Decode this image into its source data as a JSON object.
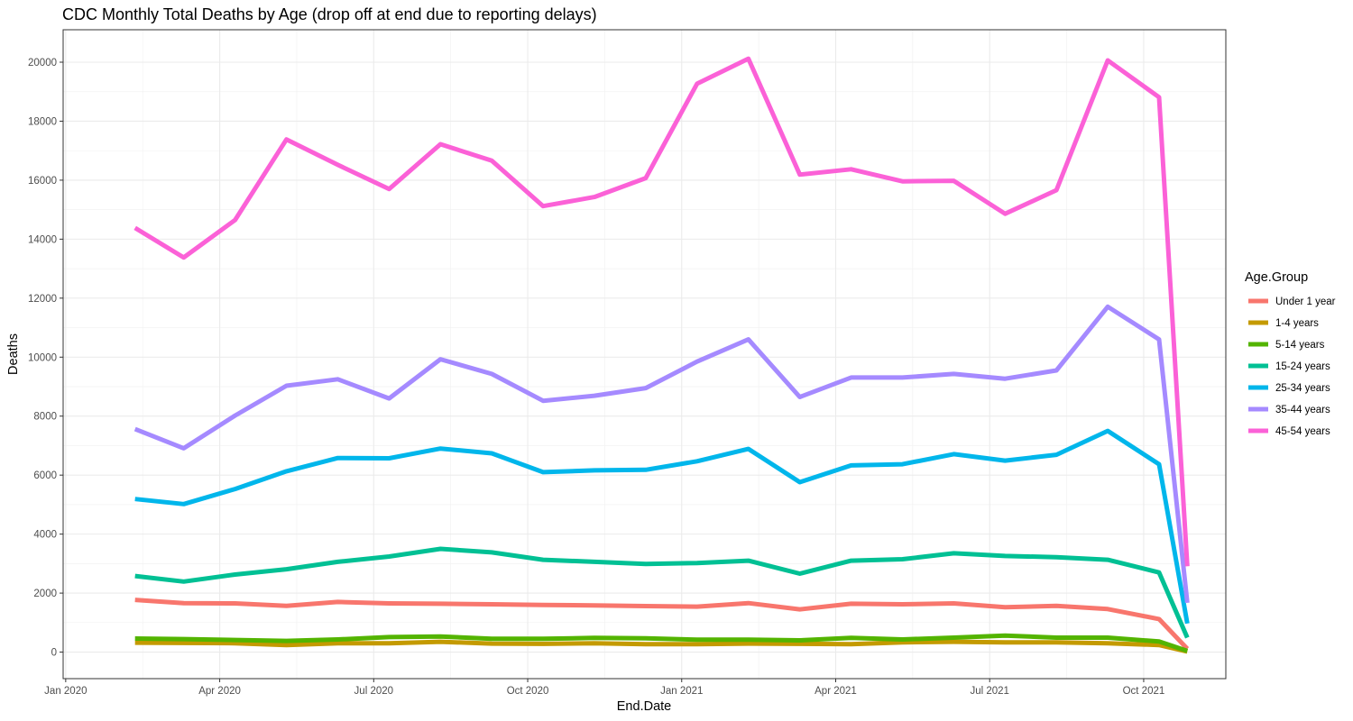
{
  "chart_data": {
    "type": "line",
    "title": "CDC Monthly Total Deaths by Age (drop off at end due to reporting delays)",
    "xlabel": "End.Date",
    "ylabel": "Deaths",
    "legend_title": "Age.Group",
    "legend_position": "right",
    "grid": true,
    "ylim": [
      -900,
      21100
    ],
    "y_ticks": [
      0,
      2000,
      4000,
      6000,
      8000,
      10000,
      12000,
      14000,
      16000,
      18000,
      20000
    ],
    "y_tick_labels": [
      "0",
      "2000",
      "4000",
      "6000",
      "8000",
      "10000",
      "12000",
      "14000",
      "16000",
      "18000",
      "20000"
    ],
    "x_ticks": [
      0,
      3,
      6,
      9,
      12,
      15,
      18,
      21
    ],
    "x_tick_labels": [
      "Jan 2020",
      "Apr 2020",
      "Jul 2020",
      "Oct 2020",
      "Jan 2021",
      "Apr 2021",
      "Jul 2021",
      "Oct 2021"
    ],
    "x_minor": [
      1.5,
      4.5,
      7.5,
      10.5,
      13.5,
      16.5,
      19.5
    ],
    "xlim": [
      -0.05,
      22.6
    ],
    "x": [
      1.35,
      2.3,
      3.3,
      4.3,
      5.3,
      6.3,
      7.3,
      8.3,
      9.3,
      10.3,
      11.3,
      12.3,
      13.3,
      14.3,
      15.3,
      16.3,
      17.3,
      18.3,
      19.3,
      20.3,
      21.3,
      21.85
    ],
    "series": [
      {
        "name": "Under 1 year",
        "color": "#F8766D",
        "values": [
          1770,
          1660,
          1650,
          1570,
          1700,
          1650,
          1640,
          1620,
          1600,
          1580,
          1560,
          1540,
          1660,
          1450,
          1640,
          1620,
          1650,
          1520,
          1570,
          1460,
          1120,
          110
        ]
      },
      {
        "name": "1-4 years",
        "color": "#C49A00",
        "values": [
          320,
          310,
          300,
          240,
          300,
          300,
          350,
          290,
          280,
          300,
          270,
          270,
          290,
          280,
          270,
          330,
          350,
          330,
          330,
          300,
          240,
          20
        ]
      },
      {
        "name": "5-14 years",
        "color": "#53B400",
        "values": [
          460,
          440,
          410,
          380,
          430,
          510,
          530,
          450,
          450,
          480,
          470,
          420,
          420,
          400,
          480,
          430,
          490,
          560,
          490,
          490,
          360,
          40
        ]
      },
      {
        "name": "15-24 years",
        "color": "#00C094",
        "values": [
          2580,
          2390,
          2630,
          2810,
          3060,
          3240,
          3500,
          3380,
          3130,
          3060,
          2990,
          3020,
          3100,
          2660,
          3100,
          3150,
          3350,
          3260,
          3220,
          3130,
          2700,
          490
        ]
      },
      {
        "name": "25-34 years",
        "color": "#00B6EB",
        "values": [
          5190,
          5020,
          5530,
          6130,
          6580,
          6570,
          6900,
          6740,
          6100,
          6160,
          6180,
          6470,
          6890,
          5760,
          6330,
          6370,
          6710,
          6490,
          6690,
          7500,
          6370,
          970
        ]
      },
      {
        "name": "35-44 years",
        "color": "#A58AFF",
        "values": [
          7560,
          6910,
          8020,
          9030,
          9250,
          8600,
          9930,
          9430,
          8520,
          8690,
          8950,
          9850,
          10600,
          8650,
          9310,
          9310,
          9430,
          9270,
          9550,
          11710,
          10600,
          1670
        ]
      },
      {
        "name": "45-54 years",
        "color": "#FB61D7",
        "values": [
          14380,
          13380,
          14650,
          17380,
          16520,
          15700,
          17220,
          16660,
          15120,
          15430,
          16070,
          19270,
          20120,
          16190,
          16370,
          15960,
          15980,
          14860,
          15660,
          20060,
          18810,
          2910
        ]
      }
    ]
  }
}
